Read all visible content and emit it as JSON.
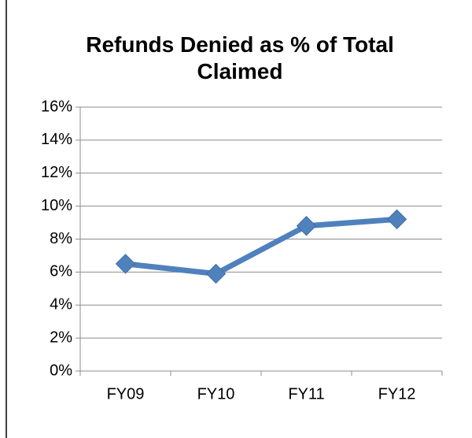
{
  "chart_data": {
    "type": "line",
    "title": "Refunds Denied as % of Total Claimed",
    "categories": [
      "FY09",
      "FY10",
      "FY11",
      "FY12"
    ],
    "values": [
      6.5,
      5.9,
      8.8,
      9.2
    ],
    "color": "#4f81bd",
    "ylim": [
      0,
      16
    ],
    "yticks": [
      {
        "value": 0,
        "label": "0%"
      },
      {
        "value": 2,
        "label": "2%"
      },
      {
        "value": 4,
        "label": "4%"
      },
      {
        "value": 6,
        "label": "6%"
      },
      {
        "value": 8,
        "label": "8%"
      },
      {
        "value": 10,
        "label": "10%"
      },
      {
        "value": 12,
        "label": "12%"
      },
      {
        "value": 14,
        "label": "14%"
      },
      {
        "value": 16,
        "label": "16%"
      }
    ],
    "grid": true
  }
}
